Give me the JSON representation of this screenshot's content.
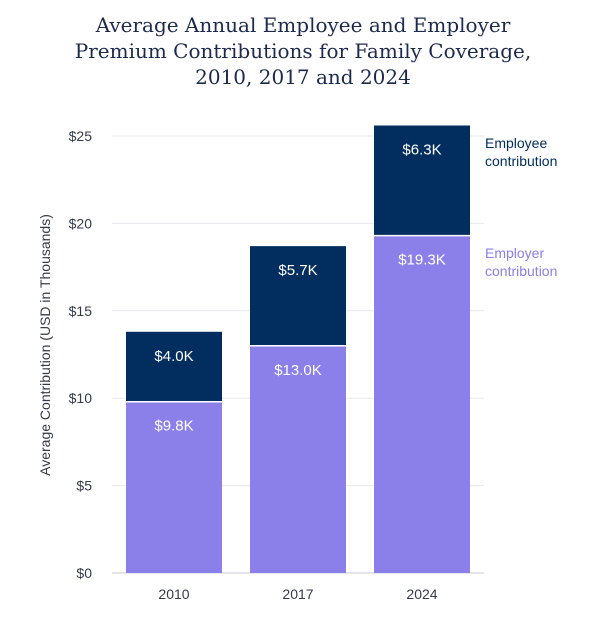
{
  "chart_data": {
    "type": "bar",
    "stacked": true,
    "title_lines": [
      "Average Annual Employee and Employer",
      "Premium Contributions for Family Coverage,",
      "2010, 2017 and 2024"
    ],
    "ylabel": "Average Contribution (USD in Thousands)",
    "xlabel": "",
    "ylim": [
      0,
      25
    ],
    "yticks": [
      0,
      5,
      10,
      15,
      20,
      25
    ],
    "ytick_labels": [
      "$0",
      "$5",
      "$10",
      "$15",
      "$20",
      "$25"
    ],
    "categories": [
      "2010",
      "2017",
      "2024"
    ],
    "series": [
      {
        "name": "Employer contribution",
        "legend_lines": [
          "Employer",
          "contribution"
        ],
        "color": "#8b7fea",
        "values": [
          9.8,
          13.0,
          19.3
        ],
        "labels": [
          "$9.8K",
          "$13.0K",
          "$19.3K"
        ]
      },
      {
        "name": "Employee contribution",
        "legend_lines": [
          "Employee",
          "contribution"
        ],
        "color": "#022d5f",
        "values": [
          4.0,
          5.7,
          6.3
        ],
        "labels": [
          "$4.0K",
          "$5.7K",
          "$6.3K"
        ]
      }
    ],
    "grid": true,
    "legend": "right"
  }
}
